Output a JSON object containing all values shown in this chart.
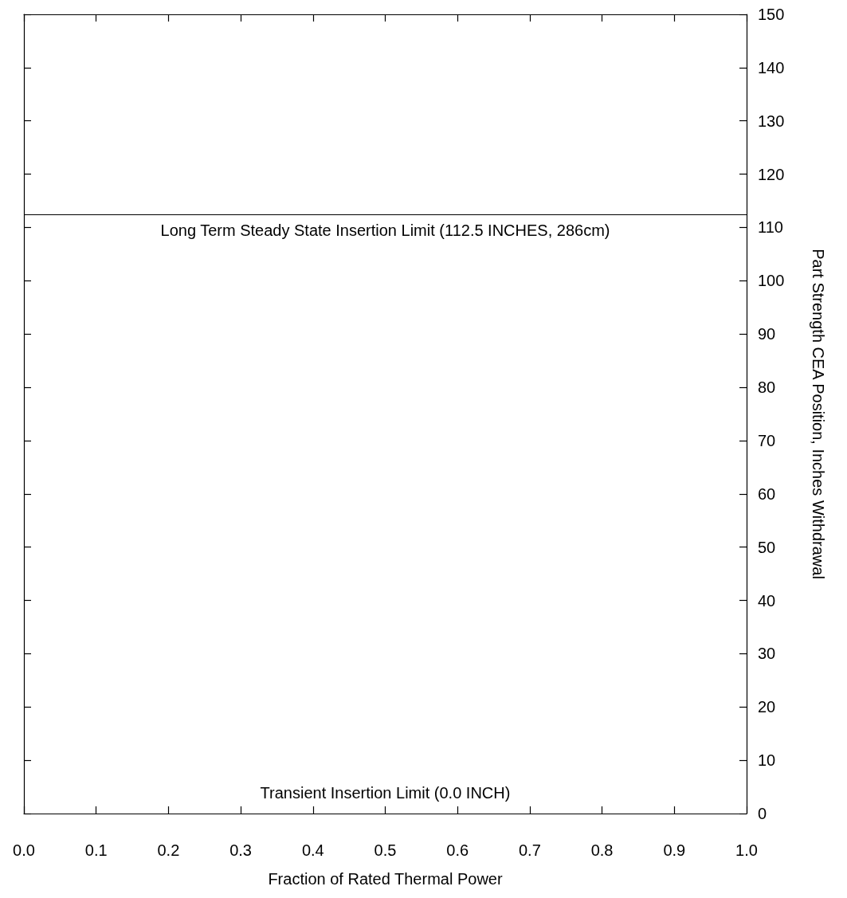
{
  "chart_data": {
    "type": "line",
    "xlabel": "Fraction of Rated Thermal Power",
    "y2label": "Part Strength CEA Position, Inches Withdrawal",
    "xlim": [
      0,
      1
    ],
    "xticks": [
      {
        "value": 0,
        "label": "0.0"
      },
      0.1,
      0.2,
      0.3,
      0.4,
      0.5,
      0.6,
      0.7,
      0.8,
      0.9,
      {
        "value": 1,
        "label": "1.0"
      }
    ],
    "y2lim": [
      0,
      150
    ],
    "y2ticks": [
      0,
      10,
      20,
      30,
      40,
      50,
      60,
      70,
      80,
      90,
      100,
      110,
      120,
      130,
      140,
      150
    ],
    "ref_lines": [
      {
        "axis": "y2",
        "value": 112.5,
        "label": "Long Term Steady State Insertion Limit (112.5 INCHES, 286cm)",
        "color": "#000000"
      }
    ],
    "annotations": [
      "Transient Insertion Limit (0.0 INCH)"
    ],
    "grid": false
  }
}
